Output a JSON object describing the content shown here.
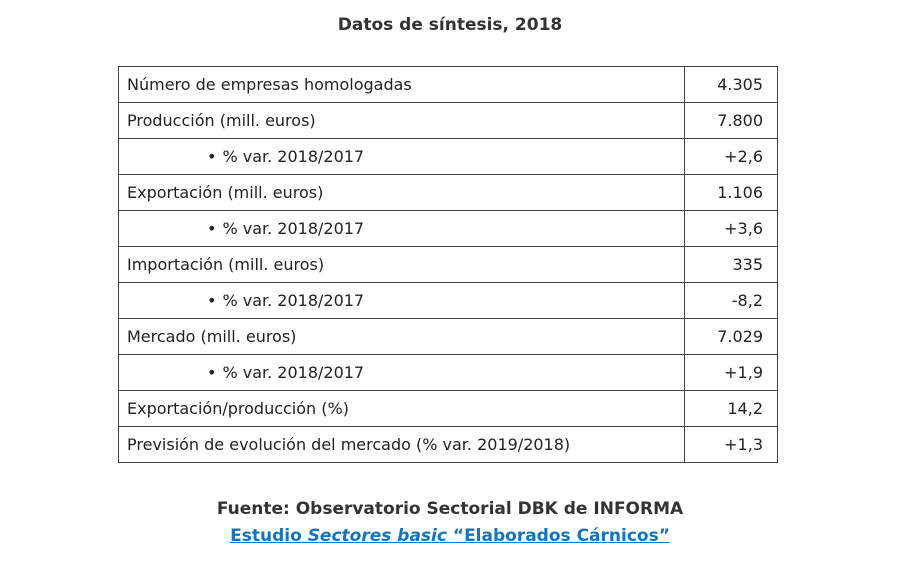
{
  "title": "Datos de síntesis, 2018",
  "rows": [
    {
      "label": "Número de empresas homologadas",
      "value": "4.305",
      "sub": false
    },
    {
      "label": "Producción (mill. euros)",
      "value": "7.800",
      "sub": false
    },
    {
      "label": "% var. 2018/2017",
      "value": "+2,6",
      "sub": true
    },
    {
      "label": "Exportación (mill. euros)",
      "value": "1.106",
      "sub": false
    },
    {
      "label": "% var. 2018/2017",
      "value": "+3,6",
      "sub": true
    },
    {
      "label": "Importación (mill. euros)",
      "value": "335",
      "sub": false
    },
    {
      "label": "% var. 2018/2017",
      "value": "-8,2",
      "sub": true
    },
    {
      "label": "Mercado (mill. euros)",
      "value": "7.029",
      "sub": false
    },
    {
      "label": "% var. 2018/2017",
      "value": "+1,9",
      "sub": true
    },
    {
      "label": "Exportación/producción (%)",
      "value": "14,2",
      "sub": false
    },
    {
      "label": "Previsión de evolución del mercado (% var. 2019/2018)",
      "value": "+1,3",
      "sub": false
    }
  ],
  "bullet_glyph": "•",
  "source": "Fuente: Observatorio Sectorial DBK de INFORMA",
  "study_link": {
    "prefix": "Estudio",
    "italic": "Sectores basic",
    "quoted": "“Elaborados Cárnicos”"
  },
  "colors": {
    "link": "#1a73b8",
    "border": "#444444",
    "text": "#222222"
  }
}
